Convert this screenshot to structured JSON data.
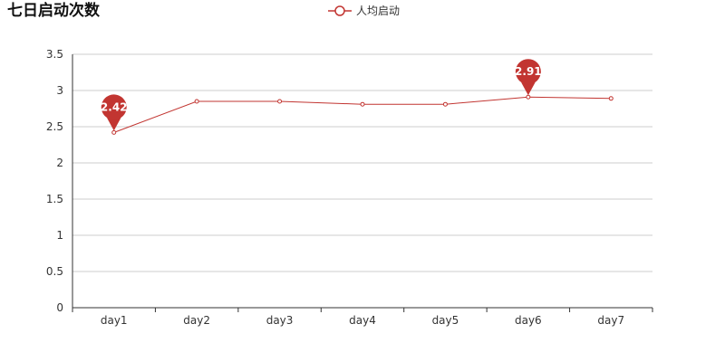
{
  "chart_data": {
    "type": "line",
    "title": "七日启动次数",
    "xlabel": "",
    "ylabel": "",
    "categories": [
      "day1",
      "day2",
      "day3",
      "day4",
      "day5",
      "day6",
      "day7"
    ],
    "series": [
      {
        "name": "人均启动",
        "values": [
          2.42,
          2.85,
          2.85,
          2.81,
          2.81,
          2.91,
          2.89
        ],
        "color": "#c23531"
      }
    ],
    "ylim": [
      0,
      3.5
    ],
    "yticks": [
      "0",
      "0.5",
      "1",
      "1.5",
      "2",
      "2.5",
      "3",
      "3.5"
    ],
    "grid": true,
    "legend": "top-center",
    "annotations": [
      {
        "kind": "min-pin",
        "category": "day1",
        "value": 2.42,
        "label": "2.42"
      },
      {
        "kind": "max-pin",
        "category": "day6",
        "value": 2.91,
        "label": "2.91"
      }
    ],
    "colors": {
      "series": "#c23531",
      "grid": "#cccccc",
      "axis": "#333333"
    }
  }
}
